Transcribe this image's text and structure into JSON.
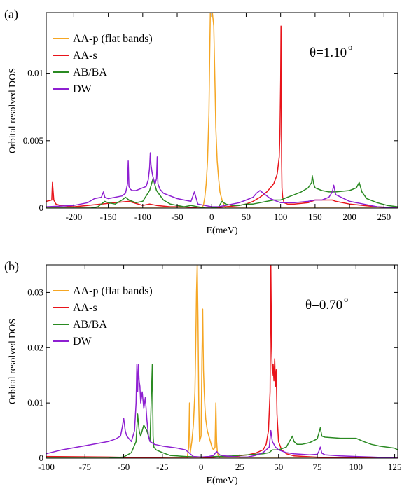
{
  "chart_data": [
    {
      "type": "line",
      "panel_label": "(a)",
      "annotation": "θ=1.10",
      "annotation_sup": "o",
      "xlabel": "E(meV)",
      "ylabel": "Orbital resolved DOS",
      "xlim": [
        -240,
        270
      ],
      "ylim": [
        0,
        0.0145
      ],
      "xticks": [
        -200,
        -150,
        -100,
        -50,
        0,
        50,
        100,
        150,
        200,
        250
      ],
      "xtick_labels": [
        "-200",
        "-150",
        "-100",
        "-50",
        "0",
        "50",
        "100",
        "150",
        "200",
        "250"
      ],
      "yticks": [
        0,
        0.005,
        0.01
      ],
      "ytick_labels": [
        "0",
        "0.005",
        "0.01"
      ],
      "legend_position": "top-left",
      "series": [
        {
          "name": "AA-p (flat bands)",
          "color": "#f5a623",
          "x": [
            -240,
            -15,
            -12,
            -10,
            -8,
            -6,
            -4,
            -3,
            -2,
            -1,
            0,
            1,
            2,
            3,
            4,
            5,
            6,
            8,
            10,
            12,
            15,
            18,
            20,
            270
          ],
          "y": [
            0,
            0,
            0.0002,
            0.0008,
            0.0018,
            0.0035,
            0.007,
            0.011,
            0.0145,
            0.0145,
            0.0145,
            0.0145,
            0.014,
            0.0135,
            0.011,
            0.0085,
            0.006,
            0.0035,
            0.0022,
            0.0012,
            0.0006,
            0.0002,
            0,
            0
          ]
        },
        {
          "name": "AA-s",
          "color": "#e8141b",
          "x": [
            -240,
            -232,
            -231,
            -229,
            -226,
            -220,
            -200,
            -180,
            -160,
            -140,
            -120,
            -100,
            -90,
            -80,
            -60,
            -40,
            -20,
            0,
            20,
            40,
            50,
            60,
            70,
            80,
            90,
            95,
            98,
            99,
            100,
            100.5,
            101,
            101.5,
            102,
            103,
            105,
            110,
            120,
            140,
            150,
            160,
            175,
            180,
            200,
            220,
            240,
            270
          ],
          "y": [
            0.0005,
            0.0006,
            0.0019,
            0.0006,
            0.0003,
            0.0002,
            0.0001,
            0.0002,
            0.0003,
            0.0004,
            0.0005,
            0.0002,
            0.0003,
            0.0002,
            0.0001,
            0.0001,
            0,
            0,
            0.0001,
            0.0002,
            0.0003,
            0.0005,
            0.0008,
            0.0012,
            0.0018,
            0.0025,
            0.0038,
            0.0055,
            0.0095,
            0.0135,
            0.0075,
            0.0035,
            0.0015,
            0.0008,
            0.0004,
            0.0003,
            0.0003,
            0.0004,
            0.0006,
            0.0006,
            0.0006,
            0.0005,
            0.0003,
            0.0002,
            0.0001,
            0
          ]
        },
        {
          "name": "AB/BA",
          "color": "#2a8a22",
          "x": [
            -240,
            -200,
            -175,
            -165,
            -160,
            -155,
            -150,
            -140,
            -130,
            -125,
            -120,
            -110,
            -100,
            -95,
            -90,
            -85,
            -80,
            -70,
            -60,
            -50,
            -40,
            -30,
            -20,
            -10,
            0,
            10,
            15,
            20,
            30,
            40,
            50,
            60,
            70,
            80,
            90,
            100,
            110,
            120,
            130,
            140,
            145,
            146,
            148,
            150,
            160,
            170,
            176,
            180,
            200,
            210,
            214,
            218,
            225,
            240,
            255,
            270
          ],
          "y": [
            0,
            0,
            0,
            0.0001,
            0.0003,
            0.0005,
            0.0004,
            0.0003,
            0.0006,
            0.0008,
            0.0006,
            0.0004,
            0.0005,
            0.0009,
            0.0013,
            0.0022,
            0.0013,
            0.0006,
            0.0003,
            0.0002,
            0.0001,
            0.0002,
            0.0001,
            0,
            0,
            0.0001,
            0.0005,
            0.0003,
            0.0002,
            0.0002,
            0.0003,
            0.0003,
            0.0004,
            0.0005,
            0.0006,
            0.0006,
            0.0008,
            0.001,
            0.0012,
            0.0015,
            0.0019,
            0.0024,
            0.0018,
            0.0015,
            0.0013,
            0.0012,
            0.0012,
            0.0012,
            0.0013,
            0.0015,
            0.0019,
            0.0012,
            0.0007,
            0.0004,
            0.0002,
            0.0001
          ]
        },
        {
          "name": "DW",
          "color": "#8e1fd1",
          "x": [
            -240,
            -200,
            -180,
            -170,
            -160,
            -157,
            -155,
            -150,
            -140,
            -130,
            -125,
            -122,
            -121,
            -120,
            -118,
            -115,
            -110,
            -105,
            -100,
            -95,
            -92,
            -90,
            -89,
            -88,
            -86,
            -84,
            -82,
            -80,
            -79,
            -78,
            -75,
            -70,
            -60,
            -50,
            -40,
            -30,
            -25,
            -20,
            -10,
            0,
            10,
            20,
            40,
            50,
            60,
            65,
            70,
            75,
            80,
            85,
            90,
            95,
            100,
            110,
            120,
            140,
            150,
            160,
            170,
            175,
            177,
            180,
            200,
            220,
            240,
            270
          ],
          "y": [
            0.0001,
            0.0002,
            0.0004,
            0.0007,
            0.0008,
            0.0012,
            0.0008,
            0.0007,
            0.0008,
            0.0009,
            0.0011,
            0.0018,
            0.0035,
            0.0016,
            0.0014,
            0.0013,
            0.0013,
            0.0014,
            0.0015,
            0.0016,
            0.0021,
            0.003,
            0.0041,
            0.0032,
            0.0025,
            0.0021,
            0.0018,
            0.0022,
            0.0038,
            0.0018,
            0.0014,
            0.0011,
            0.0009,
            0.0007,
            0.0006,
            0.0005,
            0.0012,
            0.0003,
            0.0002,
            0.0001,
            0.0001,
            0.0002,
            0.0004,
            0.0006,
            0.0008,
            0.0011,
            0.0013,
            0.0011,
            0.0009,
            0.0007,
            0.0006,
            0.0005,
            0.0004,
            0.0004,
            0.0004,
            0.0005,
            0.0006,
            0.0006,
            0.0008,
            0.0012,
            0.0017,
            0.001,
            0.0005,
            0.0003,
            0.0001,
            0
          ]
        }
      ]
    },
    {
      "type": "line",
      "panel_label": "(b)",
      "annotation": "θ=0.70",
      "annotation_sup": "o",
      "xlabel": "E(meV)",
      "ylabel": "Orbital resolved DOS",
      "xlim": [
        -100,
        127
      ],
      "ylim": [
        0,
        0.035
      ],
      "xticks": [
        -100,
        -75,
        -50,
        -25,
        0,
        25,
        50,
        75,
        100,
        125
      ],
      "xtick_labels": [
        "-100",
        "-75",
        "-50",
        "-25",
        "0",
        "25",
        "50",
        "75",
        "100",
        "125"
      ],
      "yticks": [
        0,
        0.01,
        0.02,
        0.03
      ],
      "ytick_labels": [
        "0",
        "0.01",
        "0.02",
        "0.03"
      ],
      "legend_position": "top-left",
      "series": [
        {
          "name": "AA-p (flat bands)",
          "color": "#f5a623",
          "x": [
            -100,
            -9,
            -8,
            -7.5,
            -7,
            -6,
            -5,
            -4,
            -3.5,
            -3,
            -2.5,
            -2,
            -1.5,
            -1,
            0,
            0.5,
            1,
            1.5,
            2,
            2.5,
            3,
            4,
            5,
            6,
            7,
            8,
            9,
            9.5,
            10,
            10.5,
            11,
            12,
            127
          ],
          "y": [
            0,
            0,
            0.002,
            0.01,
            0.001,
            0.003,
            0.006,
            0.012,
            0.02,
            0.03,
            0.035,
            0.025,
            0.01,
            0.003,
            0.004,
            0.018,
            0.027,
            0.016,
            0.012,
            0.009,
            0.007,
            0.005,
            0.004,
            0.003,
            0.002,
            0.0015,
            0.002,
            0.01,
            0.003,
            0.001,
            0.0005,
            0,
            0
          ]
        },
        {
          "name": "AA-s",
          "color": "#e8141b",
          "x": [
            -100,
            -60,
            -40,
            -20,
            0,
            10,
            20,
            30,
            35,
            40,
            42,
            43.5,
            44.5,
            45,
            45.5,
            46,
            46.5,
            47,
            47.5,
            48,
            48.5,
            49,
            50,
            52,
            55,
            60,
            80,
            127
          ],
          "y": [
            0.0003,
            0.0002,
            0.0001,
            0,
            0,
            0.0002,
            0.0003,
            0.0006,
            0.0009,
            0.0015,
            0.0025,
            0.005,
            0.012,
            0.035,
            0.02,
            0.015,
            0.017,
            0.014,
            0.018,
            0.013,
            0.016,
            0.008,
            0.003,
            0.0015,
            0.0008,
            0.0004,
            0.0001,
            0
          ]
        },
        {
          "name": "AB/BA",
          "color": "#2a8a22",
          "x": [
            -100,
            -60,
            -50,
            -45,
            -42,
            -41,
            -40,
            -39,
            -37,
            -35,
            -33,
            -31.5,
            -31,
            -30.5,
            -29,
            -25,
            -20,
            -10,
            0,
            10,
            20,
            30,
            40,
            44,
            46,
            50,
            55,
            58,
            59,
            60,
            62,
            65,
            70,
            75,
            77,
            78,
            80,
            90,
            100,
            105,
            110,
            115,
            120,
            125,
            127
          ],
          "y": [
            0,
            0,
            0.0002,
            0.001,
            0.003,
            0.008,
            0.005,
            0.004,
            0.006,
            0.005,
            0.003,
            0.017,
            0.004,
            0.002,
            0.0015,
            0.001,
            0.0005,
            0.0003,
            0.0002,
            0.0003,
            0.0004,
            0.0006,
            0.0008,
            0.001,
            0.0015,
            0.0015,
            0.002,
            0.0035,
            0.004,
            0.003,
            0.0025,
            0.0025,
            0.0028,
            0.0035,
            0.0055,
            0.004,
            0.0038,
            0.0036,
            0.0036,
            0.003,
            0.0025,
            0.0022,
            0.002,
            0.0018,
            0.0015
          ]
        },
        {
          "name": "DW",
          "color": "#8e1fd1",
          "x": [
            -100,
            -90,
            -80,
            -70,
            -60,
            -55,
            -52,
            -51,
            -50,
            -49,
            -48,
            -45,
            -43,
            -42,
            -41.5,
            -41,
            -40.5,
            -40,
            -39.5,
            -39,
            -38,
            -37,
            -36,
            -35,
            -34,
            -33,
            -30,
            -25,
            -20,
            -15,
            -10,
            -5,
            0,
            5,
            8,
            10,
            12,
            15,
            20,
            25,
            30,
            35,
            40,
            44,
            45,
            46,
            48,
            50,
            55,
            60,
            70,
            75,
            76,
            77,
            78,
            80,
            90,
            100,
            110,
            120,
            127
          ],
          "y": [
            0.0008,
            0.0015,
            0.002,
            0.0025,
            0.003,
            0.0035,
            0.004,
            0.0055,
            0.0072,
            0.005,
            0.004,
            0.003,
            0.005,
            0.01,
            0.017,
            0.012,
            0.017,
            0.014,
            0.013,
            0.01,
            0.012,
            0.009,
            0.011,
            0.007,
            0.004,
            0.003,
            0.0025,
            0.0022,
            0.002,
            0.0018,
            0.0015,
            0.0003,
            0.0002,
            0.0003,
            0.0005,
            0.0012,
            0.0006,
            0.0004,
            0.0003,
            0.0002,
            0.0002,
            0.0005,
            0.001,
            0.002,
            0.005,
            0.003,
            0.002,
            0.0015,
            0.001,
            0.0008,
            0.0006,
            0.0007,
            0.0012,
            0.002,
            0.0009,
            0.0006,
            0.0004,
            0.0003,
            0.0002,
            0.0001,
            0
          ]
        }
      ]
    }
  ]
}
